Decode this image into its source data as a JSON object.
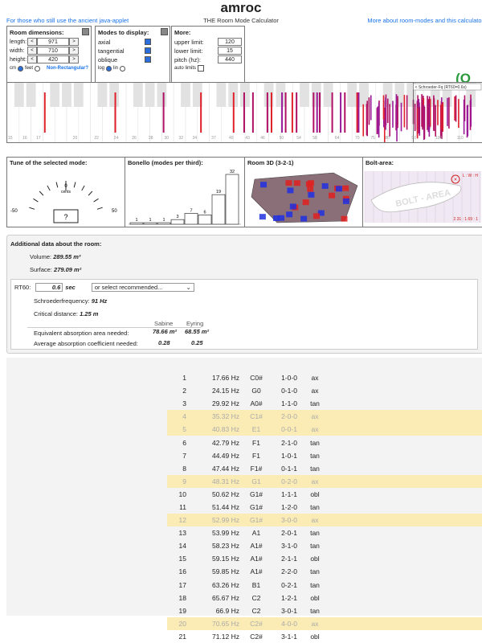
{
  "header": {
    "title": "amroc",
    "left_link": "For those who still use the ancient java-applet",
    "subtitle": "THE Room Mode Calculator",
    "right_link": "More about room-modes and this calculator"
  },
  "dimensions": {
    "title": "Room dimensions:",
    "length_label": "length:",
    "length_value": "971",
    "width_label": "width:",
    "width_value": "710",
    "height_label": "height:",
    "height_value": "420",
    "dec": "<",
    "inc": ">",
    "cm_label": "cm",
    "feet_label": "feet",
    "non_rect": "Non-Rectangular?"
  },
  "modes": {
    "title": "Modes to display:",
    "axial": "axial",
    "tangential": "tangential",
    "oblique": "oblique",
    "log": "log",
    "lin": "lin"
  },
  "more": {
    "title": "More:",
    "upper_label": "upper limit:",
    "upper_value": "120",
    "lower_label": "lower limit:",
    "lower_value": "15",
    "pitch_label": "pitch (hz):",
    "pitch_value": "440",
    "auto_label": "auto limits"
  },
  "spinner": "(O",
  "keyboard": {
    "schroeder_note": "< Schroeder-Fq (RT60=0.6s)",
    "ticks": [
      "15",
      "16",
      "17",
      "",
      "20",
      "",
      "22",
      "24",
      "26",
      "28",
      "30",
      "32",
      "34",
      "37",
      "40",
      "43",
      "46",
      "50",
      "54",
      "58",
      "64",
      "70",
      "75",
      "80",
      "90",
      "100",
      "110"
    ]
  },
  "tune": {
    "title": "Tune of the selected mode:",
    "zero": "0",
    "unit": "cents",
    "minus": "-50",
    "plus": "50",
    "value": "?"
  },
  "bonello": {
    "title": "Bonello (modes per third):",
    "values": [
      1,
      1,
      1,
      3,
      7,
      6,
      19,
      32
    ]
  },
  "room3d": {
    "title": "Room 3D (3-2-1)"
  },
  "bolt": {
    "title": "Bolt-area:",
    "lwh": "L : W : H",
    "ratio": "2.31 : 1.69 : 1",
    "watermark": "BOLT - AREA"
  },
  "additional": {
    "title": "Additional data about the room:",
    "volume_label": "Volume:",
    "volume_value": "289.55 m³",
    "surface_label": "Surface:",
    "surface_value": "279.09 m²",
    "rt60_label": "RT60:",
    "rt60_value": "0.6",
    "rt60_unit": "sec",
    "rt60_select": "or select recommended...",
    "schroeder_label": "Schroederfrequency:",
    "schroeder_value": "91 Hz",
    "critical_label": "Critical distance:",
    "critical_value": "1.25 m",
    "sabine": "Sabine",
    "eyring": "Eyring",
    "eq_label": "Equivalent absorption area needed:",
    "eq_sabine": "78.66 m²",
    "eq_eyring": "68.55 m²",
    "avg_label": "Average absorption coefficient needed:",
    "avg_sabine": "0.28",
    "avg_eyring": "0.25"
  },
  "modes_table": [
    {
      "n": "1",
      "f": "17.66 Hz",
      "note": "C0#",
      "idx": "1-0-0",
      "type": "ax",
      "hl": false
    },
    {
      "n": "2",
      "f": "24.15 Hz",
      "note": "G0",
      "idx": "0-1-0",
      "type": "ax",
      "hl": false
    },
    {
      "n": "3",
      "f": "29.92 Hz",
      "note": "A0#",
      "idx": "1-1-0",
      "type": "tan",
      "hl": false
    },
    {
      "n": "4",
      "f": "35.32 Hz",
      "note": "C1#",
      "idx": "2-0-0",
      "type": "ax",
      "hl": true
    },
    {
      "n": "5",
      "f": "40.83 Hz",
      "note": "E1",
      "idx": "0-0-1",
      "type": "ax",
      "hl": true
    },
    {
      "n": "6",
      "f": "42.79 Hz",
      "note": "F1",
      "idx": "2-1-0",
      "type": "tan",
      "hl": false
    },
    {
      "n": "7",
      "f": "44.49 Hz",
      "note": "F1",
      "idx": "1-0-1",
      "type": "tan",
      "hl": false
    },
    {
      "n": "8",
      "f": "47.44 Hz",
      "note": "F1#",
      "idx": "0-1-1",
      "type": "tan",
      "hl": false
    },
    {
      "n": "9",
      "f": "48.31 Hz",
      "note": "G1",
      "idx": "0-2-0",
      "type": "ax",
      "hl": true
    },
    {
      "n": "10",
      "f": "50.62 Hz",
      "note": "G1#",
      "idx": "1-1-1",
      "type": "obl",
      "hl": false
    },
    {
      "n": "11",
      "f": "51.44 Hz",
      "note": "G1#",
      "idx": "1-2-0",
      "type": "tan",
      "hl": false
    },
    {
      "n": "12",
      "f": "52.99 Hz",
      "note": "G1#",
      "idx": "3-0-0",
      "type": "ax",
      "hl": true
    },
    {
      "n": "13",
      "f": "53.99 Hz",
      "note": "A1",
      "idx": "2-0-1",
      "type": "tan",
      "hl": false
    },
    {
      "n": "14",
      "f": "58.23 Hz",
      "note": "A1#",
      "idx": "3-1-0",
      "type": "tan",
      "hl": false
    },
    {
      "n": "15",
      "f": "59.15 Hz",
      "note": "A1#",
      "idx": "2-1-1",
      "type": "obl",
      "hl": false
    },
    {
      "n": "16",
      "f": "59.85 Hz",
      "note": "A1#",
      "idx": "2-2-0",
      "type": "tan",
      "hl": false
    },
    {
      "n": "17",
      "f": "63.26 Hz",
      "note": "B1",
      "idx": "0-2-1",
      "type": "tan",
      "hl": false
    },
    {
      "n": "18",
      "f": "65.67 Hz",
      "note": "C2",
      "idx": "1-2-1",
      "type": "obl",
      "hl": false
    },
    {
      "n": "19",
      "f": "66.9 Hz",
      "note": "C2",
      "idx": "3-0-1",
      "type": "tan",
      "hl": false
    },
    {
      "n": "20",
      "f": "70.65 Hz",
      "note": "C2#",
      "idx": "4-0-0",
      "type": "ax",
      "hl": true
    },
    {
      "n": "21",
      "f": "71.12 Hz",
      "note": "C2#",
      "idx": "3-1-1",
      "type": "obl",
      "hl": false
    }
  ]
}
